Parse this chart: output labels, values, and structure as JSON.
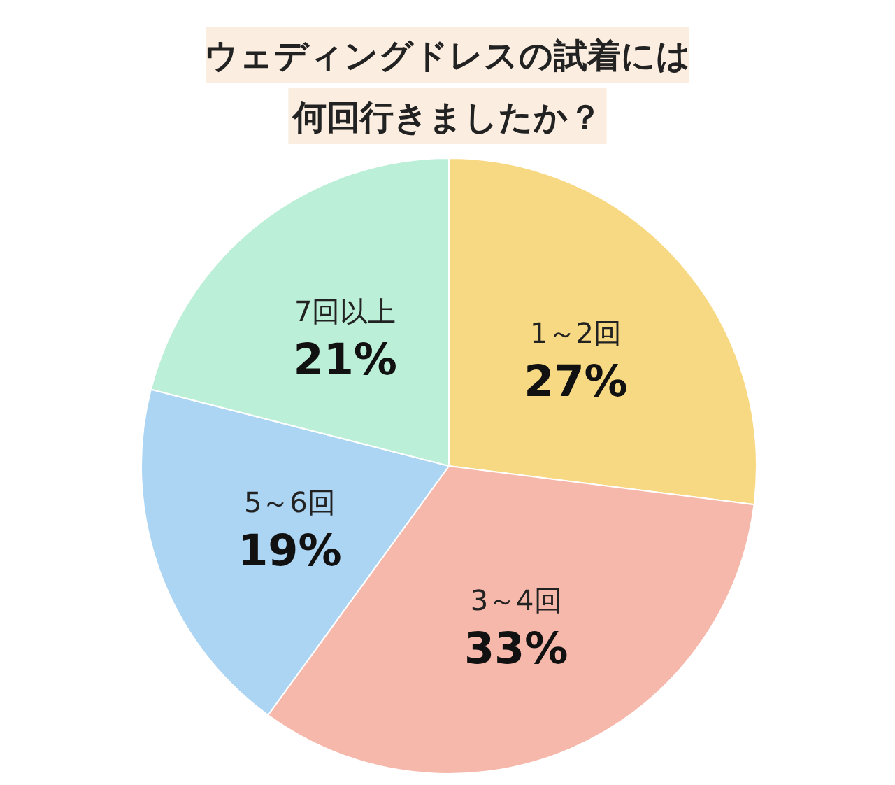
{
  "chart_data": {
    "type": "pie",
    "title": "ウェディングドレスの試着には何回行きましたか？",
    "categories": [
      "1～2回",
      "3～4回",
      "5～6回",
      "7回以上"
    ],
    "values": [
      27,
      33,
      19,
      21
    ],
    "value_labels": [
      "27%",
      "33%",
      "19%",
      "21%"
    ],
    "colors": [
      "#f8d983",
      "#f5b8aa",
      "#acd5f3",
      "#bcefd8"
    ]
  }
}
